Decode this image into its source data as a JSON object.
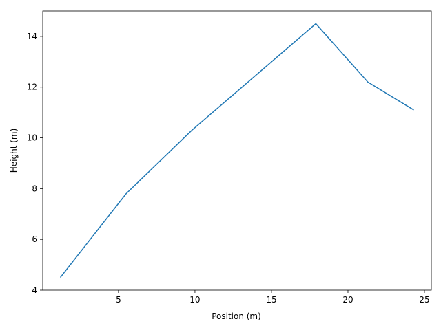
{
  "chart_data": {
    "type": "line",
    "x_label": "Position (m)",
    "y_label": "Height (m)",
    "x": [
      1.2,
      5.5,
      9.8,
      17.9,
      21.3,
      24.3
    ],
    "series": [
      {
        "color": "#1f77b4",
        "values": [
          4.5,
          7.8,
          10.3,
          14.5,
          12.2,
          11.1
        ]
      }
    ],
    "xlim": [
      0.05,
      25.45
    ],
    "xticks": [
      5,
      10,
      15,
      20,
      25
    ],
    "ylim": [
      4,
      15
    ],
    "yticks": [
      4,
      6,
      8,
      10,
      12,
      14
    ]
  }
}
